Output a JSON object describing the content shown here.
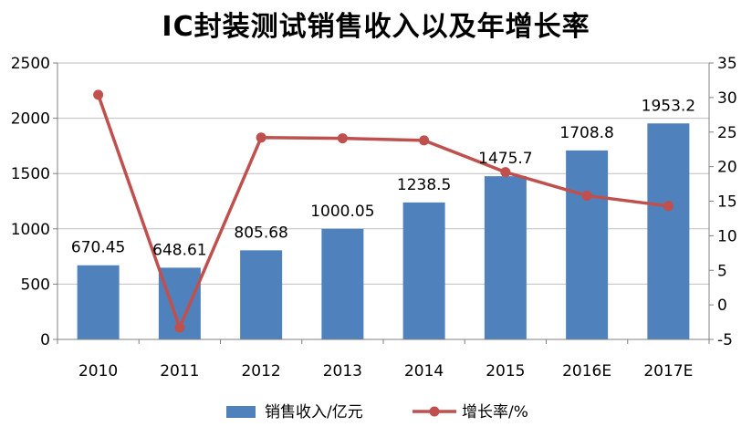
{
  "chart_data": {
    "type": "bar",
    "title": "IC封装测试销售收入以及年增长率",
    "categories": [
      "2010",
      "2011",
      "2012",
      "2013",
      "2014",
      "2015",
      "2016E",
      "2017E"
    ],
    "series": [
      {
        "name": "销售收入/亿元",
        "type": "bar",
        "axis": "left",
        "values": [
          670.45,
          648.61,
          805.68,
          1000.05,
          1238.5,
          1475.7,
          1708.8,
          1953.2
        ],
        "labels": [
          "670.45",
          "648.61",
          "805.68",
          "1000.05",
          "1238.5",
          "1475.7",
          "1708.8",
          "1953.2"
        ],
        "color": "#4F81BD"
      },
      {
        "name": "增长率/%",
        "type": "line",
        "axis": "right",
        "values": [
          30.4,
          -3.3,
          24.2,
          24.1,
          23.8,
          19.2,
          15.8,
          14.3
        ],
        "color": "#C0504D"
      }
    ],
    "y_left": {
      "ylim": [
        0,
        2500
      ],
      "ticks": [
        "0",
        "500",
        "1000",
        "1500",
        "2000",
        "2500"
      ]
    },
    "y_right": {
      "ylim": [
        -5,
        35
      ],
      "ticks": [
        "-5",
        "0",
        "5",
        "10",
        "15",
        "20",
        "25",
        "30",
        "35"
      ]
    },
    "grid": "horizontal",
    "legend": "bottom"
  }
}
